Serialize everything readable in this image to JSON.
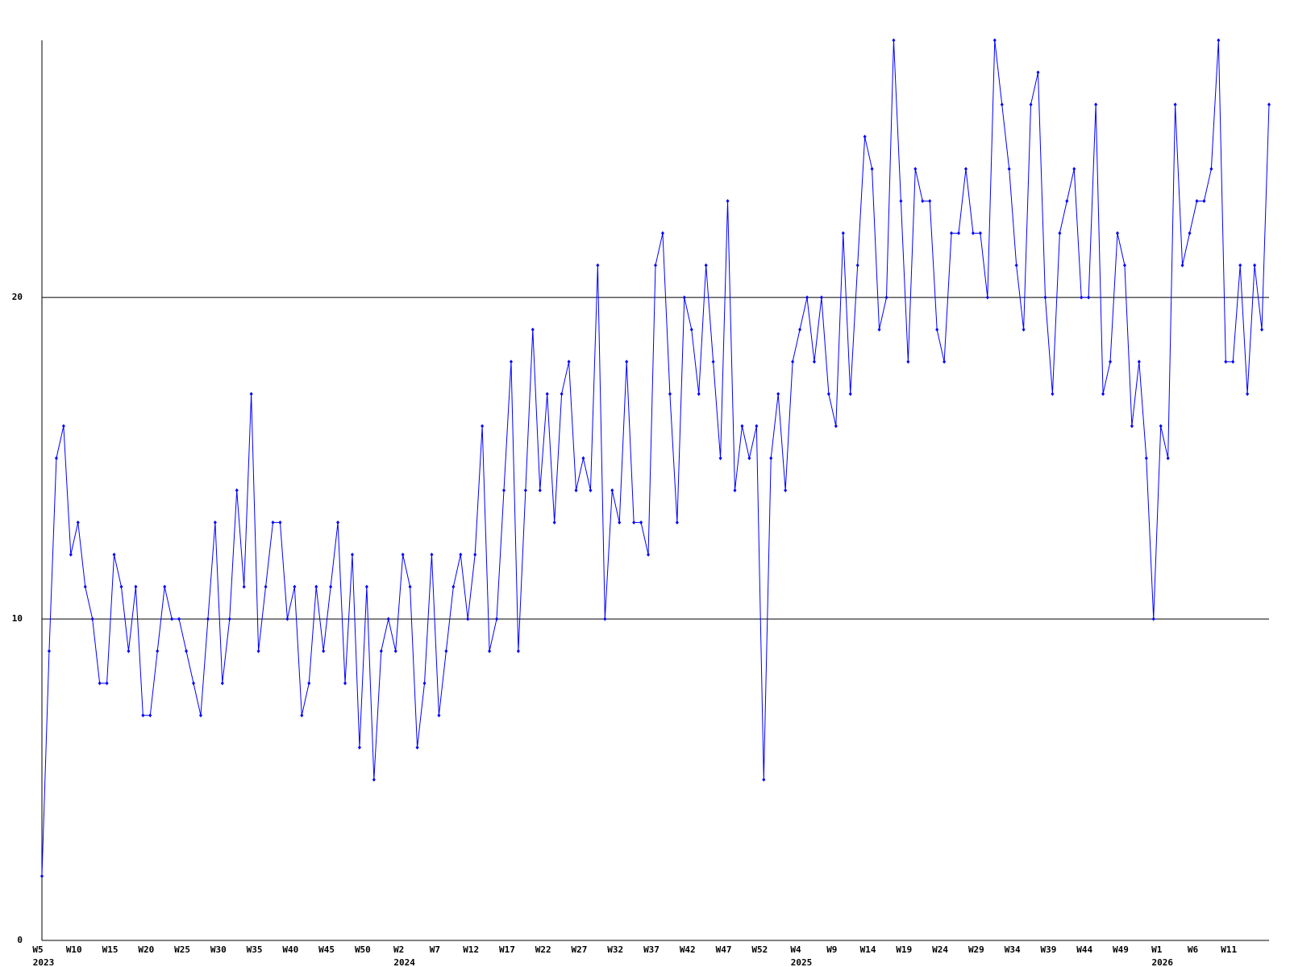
{
  "chart_data": {
    "type": "line",
    "categories": [
      {
        "label": "W5",
        "year": "2023"
      },
      null,
      null,
      null,
      null,
      {
        "label": "W10"
      },
      null,
      null,
      null,
      null,
      {
        "label": "W15"
      },
      null,
      null,
      null,
      null,
      {
        "label": "W20"
      },
      null,
      null,
      null,
      null,
      {
        "label": "W25"
      },
      null,
      null,
      null,
      null,
      {
        "label": "W30"
      },
      null,
      null,
      null,
      null,
      {
        "label": "W35"
      },
      null,
      null,
      null,
      null,
      {
        "label": "W40"
      },
      null,
      null,
      null,
      null,
      {
        "label": "W45"
      },
      null,
      null,
      null,
      null,
      {
        "label": "W50"
      },
      null,
      null,
      null,
      null,
      {
        "label": "W2",
        "year": "2024"
      },
      null,
      null,
      null,
      null,
      {
        "label": "W7"
      },
      null,
      null,
      null,
      null,
      {
        "label": "W12"
      },
      null,
      null,
      null,
      null,
      {
        "label": "W17"
      },
      null,
      null,
      null,
      null,
      {
        "label": "W22"
      },
      null,
      null,
      null,
      null,
      {
        "label": "W27"
      },
      null,
      null,
      null,
      null,
      {
        "label": "W32"
      },
      null,
      null,
      null,
      null,
      {
        "label": "W37"
      },
      null,
      null,
      null,
      null,
      {
        "label": "W42"
      },
      null,
      null,
      null,
      null,
      {
        "label": "W47"
      },
      null,
      null,
      null,
      null,
      {
        "label": "W52"
      },
      null,
      null,
      null,
      null,
      {
        "label": "W4",
        "year": "2025"
      },
      null,
      null,
      null,
      null,
      {
        "label": "W9"
      },
      null,
      null,
      null,
      null,
      {
        "label": "W14"
      },
      null,
      null,
      null,
      null,
      {
        "label": "W19"
      },
      null,
      null,
      null,
      null,
      {
        "label": "W24"
      },
      null,
      null,
      null,
      null,
      {
        "label": "W29"
      },
      null,
      null,
      null,
      null,
      {
        "label": "W34"
      },
      null,
      null,
      null,
      null,
      {
        "label": "W39"
      },
      null,
      null,
      null,
      null,
      {
        "label": "W44"
      },
      null,
      null,
      null,
      null,
      {
        "label": "W49"
      },
      null,
      null,
      null,
      null,
      {
        "label": "W1",
        "year": "2026"
      },
      null,
      null,
      null,
      null,
      {
        "label": "W6"
      },
      null,
      null,
      null,
      null,
      {
        "label": "W11"
      },
      null,
      null,
      null,
      null,
      null
    ],
    "series": [
      {
        "color": "#0000ff",
        "values": [
          2,
          9,
          15,
          16,
          12,
          13,
          11,
          10,
          8,
          8,
          12,
          11,
          9,
          11,
          7,
          7,
          9,
          11,
          10,
          10,
          9,
          8,
          7,
          10,
          13,
          8,
          10,
          14,
          11,
          17,
          9,
          11,
          13,
          13,
          10,
          11,
          7,
          8,
          11,
          9,
          11,
          13,
          8,
          12,
          6,
          11,
          5,
          9,
          10,
          9,
          12,
          11,
          6,
          8,
          12,
          7,
          9,
          11,
          12,
          10,
          12,
          16,
          9,
          10,
          14,
          18,
          9,
          14,
          19,
          14,
          17,
          13,
          17,
          18,
          14,
          15,
          14,
          21,
          10,
          14,
          13,
          18,
          13,
          13,
          12,
          21,
          22,
          17,
          13,
          20,
          19,
          17,
          21,
          18,
          15,
          23,
          14,
          16,
          15,
          16,
          5,
          15,
          17,
          14,
          18,
          19,
          20,
          18,
          20,
          17,
          16,
          22,
          17,
          21,
          25,
          24,
          19,
          20,
          28,
          23,
          18,
          24,
          23,
          23,
          19,
          18,
          22,
          22,
          24,
          22,
          22,
          20,
          28,
          26,
          24,
          21,
          19,
          26,
          27,
          20,
          17,
          22,
          23,
          24,
          20,
          20,
          26,
          17,
          18,
          22,
          21,
          16,
          18,
          15,
          10,
          16,
          15,
          26,
          21,
          22,
          23,
          23,
          24,
          28,
          18,
          18,
          21,
          17,
          21,
          19,
          26
        ]
      }
    ],
    "ylim": [
      0,
      28
    ],
    "yticks": [
      0,
      10,
      20
    ],
    "grid": true
  }
}
